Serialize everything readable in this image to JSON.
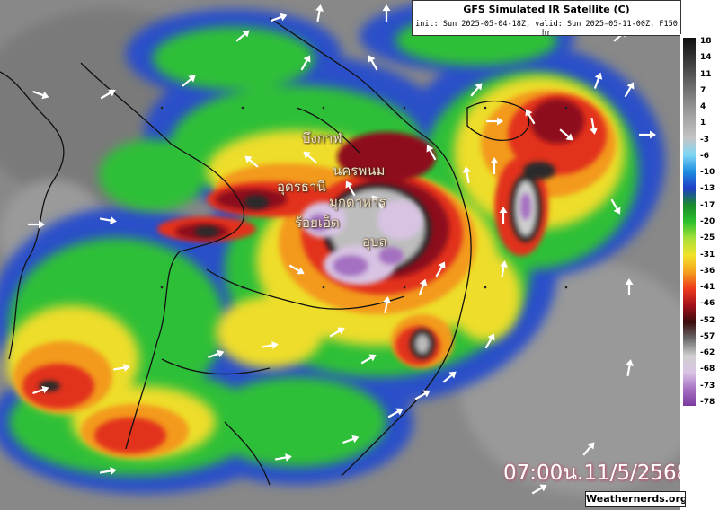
{
  "header": {
    "title": "GFS Simulated IR Satellite (C)",
    "subtitle": "init: Sun 2025-05-04-18Z, valid: Sun 2025-05-11-00Z, F150 hr"
  },
  "colorbar": {
    "ticks": [
      "18",
      "14",
      "11",
      "7",
      "4",
      "1",
      "-3",
      "-6",
      "-10",
      "-13",
      "-17",
      "-20",
      "-25",
      "-31",
      "-36",
      "-41",
      "-46",
      "-52",
      "-57",
      "-62",
      "-68",
      "-73",
      "-78"
    ],
    "colors": [
      "#101010",
      "#2e2e2e",
      "#4e4e4e",
      "#6e6e6e",
      "#8e8e8e",
      "#aaaaaa",
      "#c4c4c4",
      "#7fd7f5",
      "#1e8de0",
      "#1f3ec7",
      "#1a8c2a",
      "#2cc12c",
      "#a8e03a",
      "#f2e22a",
      "#f5a11e",
      "#ee3a1c",
      "#a3111b",
      "#3a0d0d",
      "#6a6a6a",
      "#cfcfcf",
      "#d9c4e4",
      "#a670c2",
      "#7b3a9e"
    ]
  },
  "places": [
    {
      "id": "bueng-kan",
      "label": "บึงกาฬ"
    },
    {
      "id": "nakhon-phanom",
      "label": "นครพนม"
    },
    {
      "id": "udon-thani",
      "label": "อุดรธานี"
    },
    {
      "id": "mukdahan",
      "label": "มุกดาหาร"
    },
    {
      "id": "roi-et",
      "label": "ร้อยเอ็ด"
    },
    {
      "id": "ubon",
      "label": "อุบล"
    }
  ],
  "timestamp": "07:00น.11/5/2568",
  "credit": "Weathernerds.org"
}
